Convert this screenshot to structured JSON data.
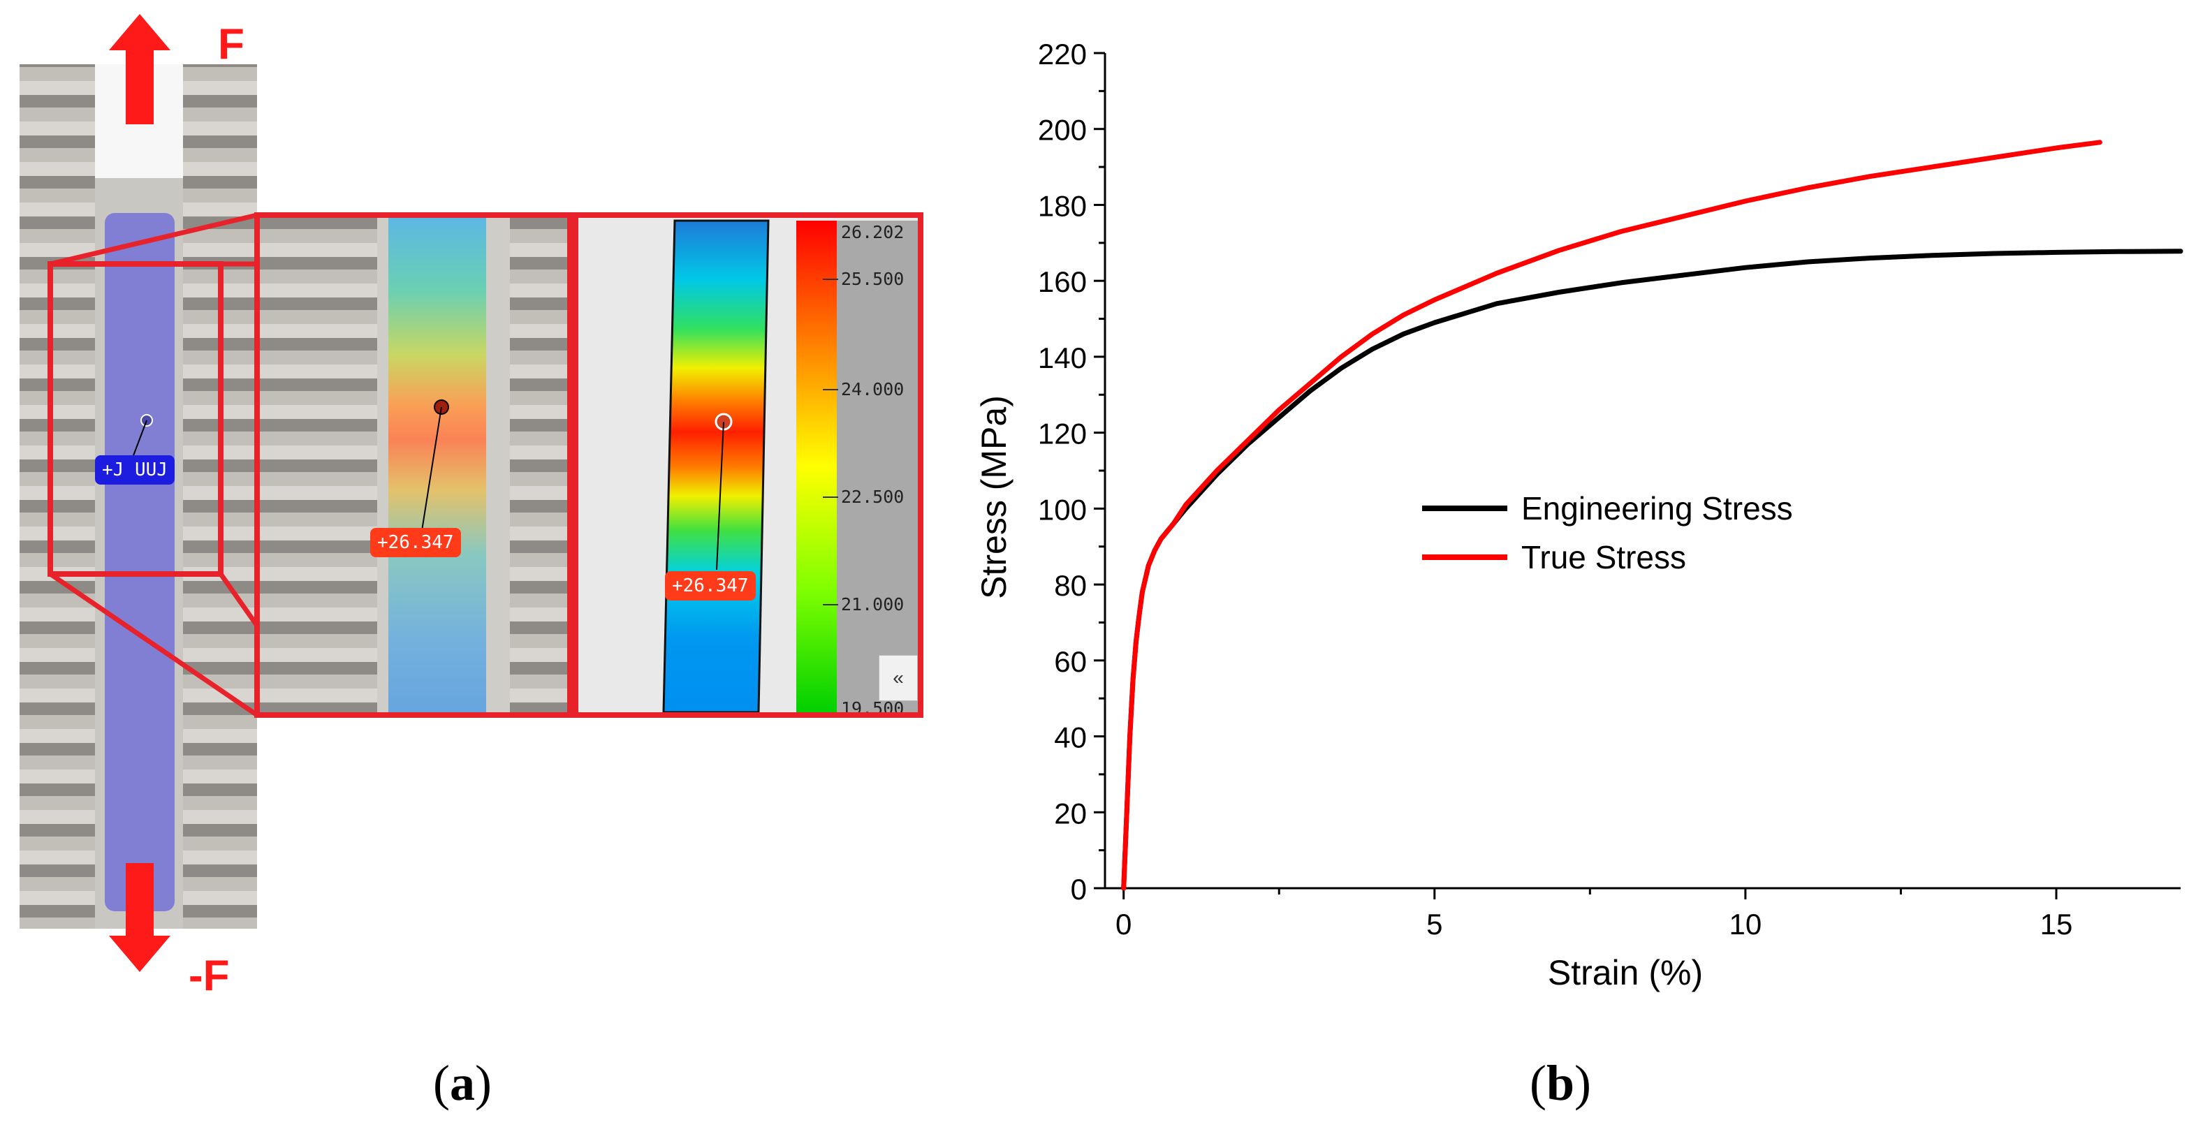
{
  "figure": {
    "panel_a_label_open": "(",
    "panel_a_label_letter": "a",
    "panel_a_label_close": ")",
    "panel_b_label_open": "(",
    "panel_b_label_letter": "b",
    "panel_b_label_close": ")"
  },
  "panel_a": {
    "force_top": "F",
    "force_bottom": "-F",
    "overview_tag": "+J UUJ",
    "zoom_tag": "+26.347",
    "field_tag": "+26.347",
    "scale_values": [
      "26.202",
      "25.500",
      "24.000",
      "22.500",
      "21.000",
      "19.500"
    ],
    "collapse_button": "«",
    "colors": {
      "frame": "#e8222a",
      "arrow": "#ff1a1a",
      "tag_blue": "#1d1de0",
      "tag_red": "#ff3b1a"
    }
  },
  "chart_data": {
    "type": "line",
    "title": "",
    "xlabel": "Strain (%)",
    "ylabel": "Stress (MPa)",
    "xlim": [
      -0.3,
      17
    ],
    "ylim": [
      0,
      220
    ],
    "xticks": [
      0,
      5,
      10,
      15
    ],
    "yticks": [
      0,
      20,
      40,
      60,
      80,
      100,
      120,
      140,
      160,
      180,
      200,
      220
    ],
    "legend": "center-right",
    "grid": false,
    "series": [
      {
        "name": "Engineering Stress",
        "color": "#000000",
        "x": [
          0,
          0.05,
          0.1,
          0.15,
          0.2,
          0.25,
          0.3,
          0.4,
          0.5,
          0.6,
          0.7,
          0.8,
          1.0,
          1.5,
          2,
          2.5,
          3,
          3.5,
          4,
          4.5,
          5,
          6,
          7,
          8,
          9,
          10,
          11,
          12,
          13,
          14,
          15,
          16,
          17
        ],
        "y": [
          0,
          20,
          40,
          55,
          65,
          72,
          78,
          85,
          89,
          92,
          94,
          96,
          100,
          109,
          117,
          124,
          131,
          137,
          142,
          146,
          149,
          154,
          157,
          159.5,
          161.5,
          163.5,
          165,
          166,
          166.7,
          167.2,
          167.5,
          167.7,
          167.8
        ]
      },
      {
        "name": "True Stress",
        "color": "#ff0000",
        "x": [
          0,
          0.05,
          0.1,
          0.15,
          0.2,
          0.25,
          0.3,
          0.4,
          0.5,
          0.6,
          0.7,
          0.8,
          1.0,
          1.5,
          2,
          2.5,
          3,
          3.5,
          4,
          4.5,
          5,
          6,
          7,
          8,
          9,
          10,
          11,
          12,
          13,
          14,
          15,
          15.7
        ],
        "y": [
          0,
          20,
          40,
          55,
          65,
          72,
          78,
          85,
          89,
          92,
          94,
          96,
          101,
          110,
          118,
          126,
          133,
          140,
          146,
          151,
          155,
          162,
          168,
          173,
          177,
          181,
          184.5,
          187.5,
          190,
          192.5,
          195,
          196.5
        ]
      }
    ]
  }
}
